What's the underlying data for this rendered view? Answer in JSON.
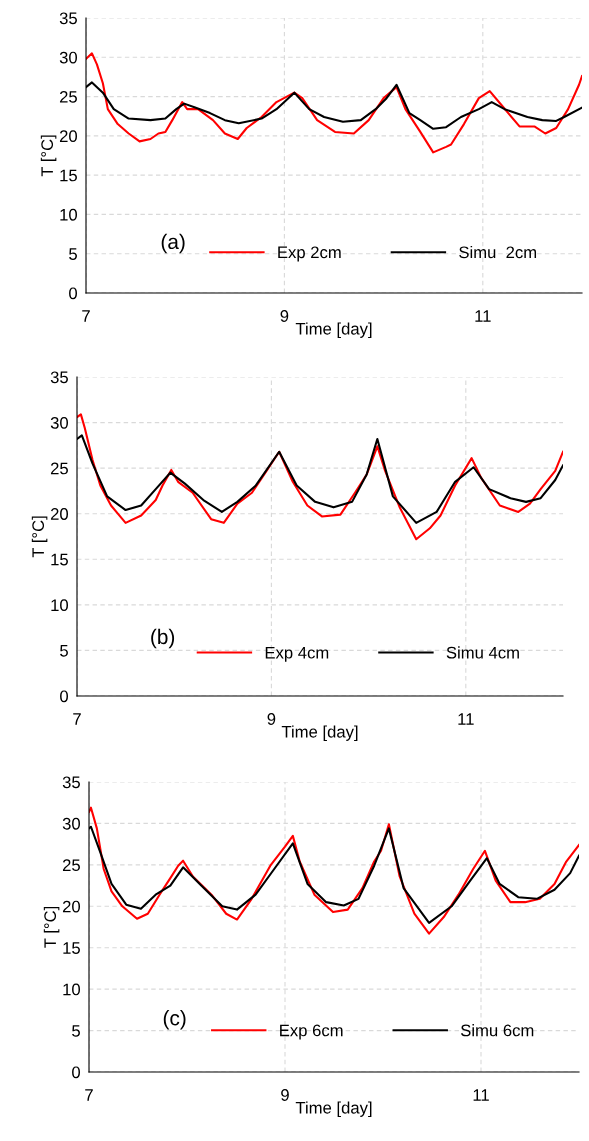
{
  "chart_data": [
    {
      "type": "line",
      "ylabel": "T [°C]",
      "xlabel": "Time [day]",
      "annotations": [
        "(a)"
      ],
      "xlim": [
        7,
        12
      ],
      "xticks": [
        7,
        9,
        11
      ],
      "ylim": [
        0,
        35
      ],
      "yticks": [
        0,
        5,
        10,
        15,
        20,
        25,
        30,
        35
      ],
      "grid": true,
      "legend": "bottom",
      "marker": "none",
      "line_style": "solid",
      "series": [
        {
          "name": "Exp 2cm",
          "color": "#ff0000",
          "x": [
            7.0,
            7.06,
            7.11,
            7.17,
            7.22,
            7.32,
            7.43,
            7.54,
            7.65,
            7.73,
            7.8,
            7.87,
            7.97,
            8.02,
            8.13,
            8.28,
            8.4,
            8.53,
            8.62,
            8.77,
            8.92,
            9.1,
            9.18,
            9.33,
            9.51,
            9.7,
            9.85,
            10.0,
            10.13,
            10.22,
            10.37,
            10.5,
            10.63,
            10.68,
            10.81,
            10.96,
            11.07,
            11.19,
            11.37,
            11.52,
            11.63,
            11.74,
            11.86,
            11.97,
            12.0
          ],
          "values": [
            29.8,
            30.5,
            29.1,
            26.7,
            23.4,
            21.5,
            20.3,
            19.3,
            19.6,
            20.3,
            20.5,
            22.0,
            24.3,
            23.4,
            23.4,
            22.0,
            20.3,
            19.6,
            21.0,
            22.4,
            24.3,
            25.5,
            24.8,
            22.0,
            20.5,
            20.3,
            22.0,
            24.8,
            26.2,
            23.4,
            20.5,
            17.9,
            18.6,
            18.9,
            21.5,
            24.8,
            25.7,
            23.9,
            21.2,
            21.2,
            20.3,
            21.0,
            23.4,
            26.5,
            27.6
          ]
        },
        {
          "name": "Simu  2cm",
          "color": "#000000",
          "x": [
            7.0,
            7.06,
            7.17,
            7.28,
            7.43,
            7.65,
            7.8,
            7.91,
            7.99,
            8.1,
            8.25,
            8.4,
            8.54,
            8.77,
            8.92,
            9.1,
            9.25,
            9.4,
            9.59,
            9.77,
            9.92,
            10.03,
            10.13,
            10.26,
            10.37,
            10.5,
            10.63,
            10.78,
            10.96,
            11.09,
            11.22,
            11.45,
            11.6,
            11.74,
            11.82,
            12.0
          ],
          "values": [
            26.2,
            26.8,
            25.5,
            23.4,
            22.2,
            22.0,
            22.2,
            23.4,
            24.1,
            23.6,
            22.9,
            22.0,
            21.6,
            22.2,
            23.4,
            25.5,
            23.4,
            22.4,
            21.8,
            22.0,
            23.4,
            24.8,
            26.5,
            22.9,
            22.0,
            20.9,
            21.1,
            22.4,
            23.4,
            24.3,
            23.4,
            22.4,
            22.0,
            21.9,
            22.4,
            23.6
          ]
        }
      ]
    },
    {
      "type": "line",
      "ylabel": "T [°C]",
      "xlabel": "Time [day]",
      "annotations": [
        "(b)"
      ],
      "xlim": [
        7,
        12
      ],
      "xticks": [
        7,
        9,
        11
      ],
      "ylim": [
        0,
        35
      ],
      "yticks": [
        0,
        5,
        10,
        15,
        20,
        25,
        30,
        35
      ],
      "grid": true,
      "legend": "bottom",
      "marker": "none",
      "line_style": "solid",
      "series": [
        {
          "name": "Exp 4cm",
          "color": "#ff0000",
          "x": [
            7.0,
            7.04,
            7.08,
            7.16,
            7.24,
            7.35,
            7.5,
            7.66,
            7.81,
            7.88,
            7.97,
            8.04,
            8.19,
            8.38,
            8.51,
            8.65,
            8.8,
            8.95,
            9.08,
            9.22,
            9.37,
            9.52,
            9.71,
            9.86,
            9.98,
            10.09,
            10.17,
            10.32,
            10.49,
            10.63,
            10.74,
            10.89,
            11.06,
            11.16,
            11.35,
            11.54,
            11.66,
            11.77,
            11.92,
            12.0
          ],
          "values": [
            30.6,
            30.9,
            29.4,
            25.9,
            23.1,
            20.9,
            19.0,
            19.8,
            21.5,
            23.1,
            24.8,
            23.5,
            22.3,
            19.4,
            19.0,
            21.1,
            22.3,
            24.7,
            26.8,
            23.5,
            20.9,
            19.7,
            19.9,
            22.3,
            24.3,
            27.4,
            24.7,
            20.7,
            17.2,
            18.4,
            19.8,
            23.1,
            26.1,
            23.9,
            20.9,
            20.2,
            21.1,
            22.7,
            24.7,
            26.8
          ]
        },
        {
          "name": "Simu 4cm",
          "color": "#000000",
          "x": [
            7.0,
            7.05,
            7.16,
            7.31,
            7.5,
            7.66,
            7.81,
            7.96,
            8.11,
            8.3,
            8.49,
            8.65,
            8.84,
            9.08,
            9.26,
            9.45,
            9.64,
            9.83,
            9.98,
            10.09,
            10.25,
            10.49,
            10.7,
            10.89,
            11.08,
            11.24,
            11.46,
            11.62,
            11.77,
            11.92,
            12.0
          ],
          "values": [
            28.2,
            28.6,
            25.5,
            21.9,
            20.4,
            20.9,
            22.7,
            24.5,
            23.3,
            21.5,
            20.2,
            21.3,
            23.1,
            26.8,
            23.1,
            21.3,
            20.7,
            21.3,
            24.3,
            28.2,
            21.9,
            19.0,
            20.2,
            23.5,
            25.1,
            22.7,
            21.7,
            21.3,
            21.7,
            23.7,
            25.3
          ]
        }
      ]
    },
    {
      "type": "line",
      "ylabel": "T [°C]",
      "xlabel": "Time [day]",
      "annotations": [
        "(c)"
      ],
      "xlim": [
        7,
        12
      ],
      "xticks": [
        7,
        9,
        11
      ],
      "ylim": [
        0,
        35
      ],
      "yticks": [
        0,
        5,
        10,
        15,
        20,
        25,
        30,
        35
      ],
      "grid": true,
      "legend": "bottom",
      "marker": "none",
      "line_style": "solid",
      "series": [
        {
          "name": "Exp 6cm",
          "color": "#ff0000",
          "x": [
            7.0,
            7.02,
            7.08,
            7.15,
            7.23,
            7.34,
            7.49,
            7.6,
            7.72,
            7.83,
            7.91,
            7.96,
            8.06,
            8.25,
            8.4,
            8.51,
            8.66,
            8.85,
            9.0,
            9.08,
            9.15,
            9.3,
            9.49,
            9.64,
            9.79,
            9.91,
            9.98,
            10.06,
            10.17,
            10.32,
            10.47,
            10.62,
            10.77,
            10.92,
            11.04,
            11.15,
            11.3,
            11.45,
            11.6,
            11.75,
            11.87,
            12.0
          ],
          "values": [
            31.4,
            31.9,
            29.4,
            24.5,
            21.8,
            20.0,
            18.5,
            19.1,
            21.4,
            23.4,
            24.9,
            25.5,
            23.6,
            21.4,
            19.1,
            18.4,
            20.9,
            24.9,
            27.2,
            28.5,
            25.4,
            21.4,
            19.3,
            19.6,
            22.2,
            25.4,
            26.7,
            29.9,
            23.6,
            19.1,
            16.7,
            18.7,
            21.4,
            24.5,
            26.7,
            23.1,
            20.5,
            20.5,
            20.9,
            22.7,
            25.4,
            27.4
          ]
        },
        {
          "name": "Simu 6cm",
          "color": "#000000",
          "x": [
            7.0,
            7.02,
            7.11,
            7.23,
            7.38,
            7.53,
            7.68,
            7.83,
            7.96,
            8.13,
            8.36,
            8.51,
            8.7,
            8.89,
            9.08,
            9.23,
            9.42,
            9.6,
            9.75,
            9.91,
            10.06,
            10.21,
            10.47,
            10.7,
            10.89,
            11.06,
            11.19,
            11.38,
            11.57,
            11.75,
            11.91,
            12.0
          ],
          "values": [
            29.4,
            29.6,
            26.7,
            22.7,
            20.2,
            19.7,
            21.4,
            22.5,
            24.7,
            22.7,
            20.0,
            19.6,
            21.4,
            24.5,
            27.6,
            22.7,
            20.5,
            20.1,
            20.9,
            24.9,
            29.4,
            22.2,
            18.0,
            20.0,
            23.1,
            25.8,
            22.7,
            21.1,
            20.9,
            22.0,
            24.0,
            26.1
          ]
        }
      ]
    }
  ]
}
